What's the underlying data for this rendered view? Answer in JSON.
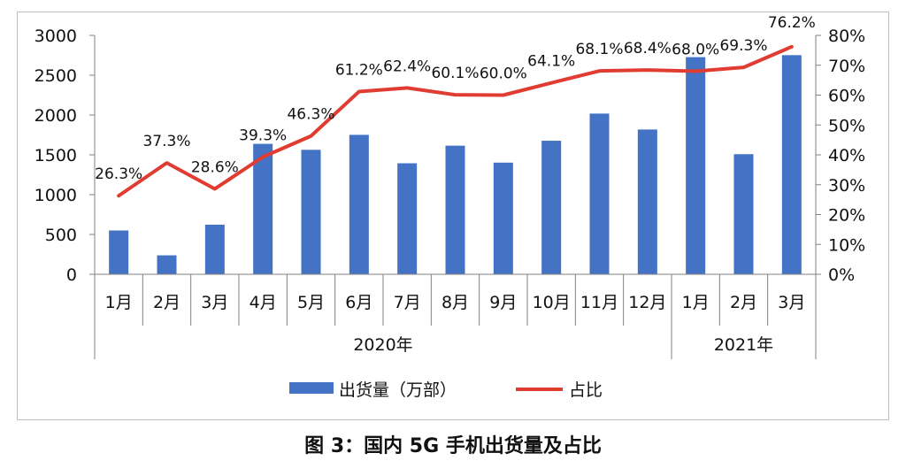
{
  "caption": "图 3：国内 5G 手机出货量及占比",
  "chart_data": {
    "type": "bar",
    "categories": [
      "1月",
      "2月",
      "3月",
      "4月",
      "5月",
      "6月",
      "7月",
      "8月",
      "9月",
      "10月",
      "11月",
      "12月",
      "1月",
      "2月",
      "3月"
    ],
    "groups": [
      {
        "label": "2020年",
        "count": 12
      },
      {
        "label": "2021年",
        "count": 3
      }
    ],
    "series": [
      {
        "name": "出货量（万部）",
        "type": "bar",
        "axis": "left",
        "color": "#4472C4",
        "values": [
          550,
          238,
          623,
          1638,
          1563,
          1751,
          1394,
          1615,
          1402,
          1677,
          2018,
          1818,
          2727,
          1508,
          2752
        ]
      },
      {
        "name": "占比",
        "type": "line",
        "axis": "right",
        "color": "#E03C31",
        "values": [
          26.3,
          37.3,
          28.6,
          39.3,
          46.3,
          61.2,
          62.4,
          60.1,
          60.0,
          64.1,
          68.1,
          68.4,
          68.0,
          69.3,
          76.2
        ],
        "labels": [
          "26.3%",
          "37.3%",
          "28.6%",
          "39.3%",
          "46.3%",
          "61.2%",
          "62.4%",
          "60.1%",
          "60.0%",
          "64.1%",
          "68.1%",
          "68.4%",
          "68.0%",
          "69.3%",
          "76.2%"
        ]
      }
    ],
    "y_left": {
      "min": 0,
      "max": 3000,
      "ticks": [
        "0",
        "500",
        "1000",
        "1500",
        "2000",
        "2500",
        "3000"
      ]
    },
    "y_right": {
      "min": 0,
      "max": 80,
      "ticks": [
        "0%",
        "10%",
        "20%",
        "30%",
        "40%",
        "50%",
        "60%",
        "70%",
        "80%"
      ]
    },
    "legend": [
      "出货量（万部）",
      "占比"
    ],
    "legend_position": "bottom",
    "grid": false
  }
}
